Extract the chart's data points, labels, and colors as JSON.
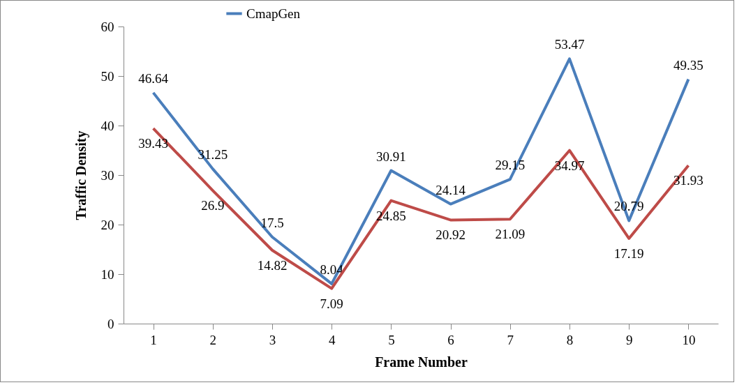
{
  "chart_data": {
    "type": "line",
    "xlabel": "Frame Number",
    "ylabel": "Traffic Density",
    "categories": [
      "1",
      "2",
      "3",
      "4",
      "5",
      "6",
      "7",
      "8",
      "9",
      "10"
    ],
    "series": [
      {
        "name": "CmapGen",
        "color": "#4a7ebb",
        "values": [
          46.64,
          31.25,
          17.5,
          8.04,
          30.91,
          24.14,
          29.15,
          53.47,
          20.79,
          49.35
        ]
      },
      {
        "color": "#be4b48",
        "values": [
          39.43,
          26.9,
          14.82,
          7.09,
          24.85,
          20.92,
          21.09,
          34.97,
          17.19,
          31.93
        ]
      }
    ],
    "ylim": [
      0,
      60
    ],
    "yticks": [
      0,
      10,
      20,
      30,
      40,
      50,
      60
    ],
    "data_labels": true,
    "legend": "top",
    "grid": false
  }
}
